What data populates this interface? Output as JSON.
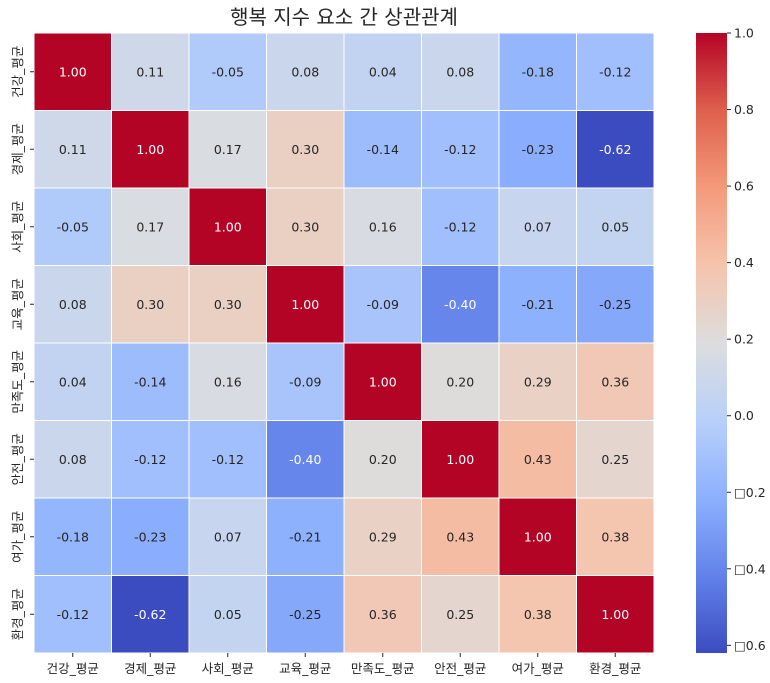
{
  "chart_data": {
    "type": "heatmap",
    "title": "행복 지수 요소 간 상관관계",
    "xlabel": "",
    "ylabel": "",
    "x_categories": [
      "건강_평균",
      "경제_평균",
      "사회_평균",
      "교육_평균",
      "만족도_평균",
      "안전_평균",
      "여가_평균",
      "환경_평균"
    ],
    "y_categories": [
      "건강_평균",
      "경제_평균",
      "사회_평균",
      "교육_평균",
      "만족도_평균",
      "안전_평균",
      "여가_평균",
      "환경_평균"
    ],
    "values": [
      [
        1.0,
        0.11,
        -0.05,
        0.08,
        0.04,
        0.08,
        -0.18,
        -0.12
      ],
      [
        0.11,
        1.0,
        0.17,
        0.3,
        -0.14,
        -0.12,
        -0.23,
        -0.62
      ],
      [
        -0.05,
        0.17,
        1.0,
        0.3,
        0.16,
        -0.12,
        0.07,
        0.05
      ],
      [
        0.08,
        0.3,
        0.3,
        1.0,
        -0.09,
        -0.4,
        -0.21,
        -0.25
      ],
      [
        0.04,
        -0.14,
        0.16,
        -0.09,
        1.0,
        0.2,
        0.29,
        0.36
      ],
      [
        0.08,
        -0.12,
        -0.12,
        -0.4,
        0.2,
        1.0,
        0.43,
        0.25
      ],
      [
        -0.18,
        -0.23,
        0.07,
        -0.21,
        0.29,
        0.43,
        1.0,
        0.38
      ],
      [
        -0.12,
        -0.62,
        0.05,
        -0.25,
        0.36,
        0.25,
        0.38,
        1.0
      ]
    ],
    "value_labels": [
      [
        "1.00",
        "0.11",
        "-0.05",
        "0.08",
        "0.04",
        "0.08",
        "-0.18",
        "-0.12"
      ],
      [
        "0.11",
        "1.00",
        "0.17",
        "0.30",
        "-0.14",
        "-0.12",
        "-0.23",
        "-0.62"
      ],
      [
        "-0.05",
        "0.17",
        "1.00",
        "0.30",
        "0.16",
        "-0.12",
        "0.07",
        "0.05"
      ],
      [
        "0.08",
        "0.30",
        "0.30",
        "1.00",
        "-0.09",
        "-0.40",
        "-0.21",
        "-0.25"
      ],
      [
        "0.04",
        "-0.14",
        "0.16",
        "-0.09",
        "1.00",
        "0.20",
        "0.29",
        "0.36"
      ],
      [
        "0.08",
        "-0.12",
        "-0.12",
        "-0.40",
        "0.20",
        "1.00",
        "0.43",
        "0.25"
      ],
      [
        "-0.18",
        "-0.23",
        "0.07",
        "-0.21",
        "0.29",
        "0.43",
        "1.00",
        "0.38"
      ],
      [
        "-0.12",
        "-0.62",
        "0.05",
        "-0.25",
        "0.36",
        "0.25",
        "0.38",
        "1.00"
      ]
    ],
    "colormap": "coolwarm",
    "color_range": [
      -0.62,
      1.0
    ],
    "colorbar_ticks": [
      1.0,
      0.8,
      0.6,
      0.4,
      0.2,
      0.0,
      -0.2,
      -0.4,
      -0.6
    ],
    "colorbar_tick_labels": [
      "1.0",
      "0.8",
      "0.6",
      "0.4",
      "0.2",
      "0.0",
      "□0.2",
      "□0.4",
      "□0.6"
    ],
    "colorbar_position": "right",
    "cell_border_color": "#ffffff",
    "grid": false
  }
}
